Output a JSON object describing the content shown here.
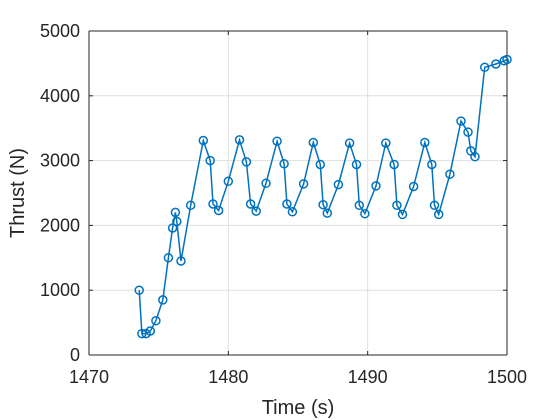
{
  "chart_data": {
    "type": "line",
    "xlabel": "Time (s)",
    "ylabel": "Thrust (N)",
    "xlim": [
      1470,
      1500
    ],
    "ylim": [
      0,
      5000
    ],
    "xticks": [
      1470,
      1480,
      1490,
      1500
    ],
    "yticks": [
      0,
      1000,
      2000,
      3000,
      4000,
      5000
    ],
    "grid": true,
    "marker": "circle",
    "color": "#0072bd",
    "series": [
      {
        "x": [
          1473.6,
          1473.8,
          1474.1,
          1474.4,
          1474.8,
          1475.3,
          1475.7,
          1476.0,
          1476.2,
          1476.3,
          1476.6,
          1477.3,
          1478.2,
          1478.7,
          1478.9,
          1479.3,
          1480.0,
          1480.8,
          1481.3,
          1481.6,
          1482.0,
          1482.7,
          1483.5,
          1484.0,
          1484.2,
          1484.6,
          1485.4,
          1486.1,
          1486.6,
          1486.8,
          1487.1,
          1487.9,
          1488.7,
          1489.2,
          1489.4,
          1489.8,
          1490.6,
          1491.3,
          1491.9,
          1492.1,
          1492.5,
          1493.3,
          1494.1,
          1494.6,
          1494.8,
          1495.1,
          1495.9,
          1496.7,
          1497.2,
          1497.4,
          1497.7,
          1498.4,
          1499.2,
          1499.8,
          1500.0
        ],
        "y": [
          1000,
          330,
          330,
          370,
          530,
          850,
          1500,
          1960,
          2200,
          2060,
          1450,
          2310,
          3310,
          3000,
          2330,
          2230,
          2680,
          3320,
          2980,
          2330,
          2220,
          2650,
          3300,
          2950,
          2330,
          2210,
          2640,
          3280,
          2940,
          2320,
          2190,
          2630,
          3270,
          2940,
          2310,
          2180,
          2610,
          3270,
          2940,
          2310,
          2170,
          2600,
          3280,
          2940,
          2310,
          2170,
          2790,
          3610,
          3440,
          3150,
          3060,
          4440,
          4490,
          4540,
          4560
        ]
      }
    ]
  }
}
